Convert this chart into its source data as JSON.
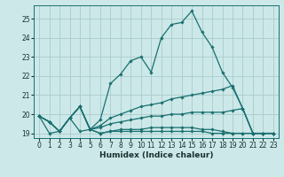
{
  "xlabel": "Humidex (Indice chaleur)",
  "bg_color": "#cce8e8",
  "grid_color": "#aacccc",
  "line_color": "#1a7070",
  "xlim": [
    -0.5,
    23.5
  ],
  "ylim": [
    18.75,
    25.7
  ],
  "yticks": [
    19,
    20,
    21,
    22,
    23,
    24,
    25
  ],
  "xticks": [
    0,
    1,
    2,
    3,
    4,
    5,
    6,
    7,
    8,
    9,
    10,
    11,
    12,
    13,
    14,
    15,
    16,
    17,
    18,
    19,
    20,
    21,
    22,
    23
  ],
  "lines": [
    {
      "x": [
        0,
        1,
        2,
        3,
        4,
        5,
        6,
        7,
        8,
        9,
        10,
        11,
        12,
        13,
        14,
        15,
        16,
        17,
        18,
        19,
        20,
        21,
        22,
        23
      ],
      "y": [
        19.9,
        19.6,
        19.1,
        19.8,
        20.4,
        19.2,
        19.7,
        21.6,
        22.1,
        22.8,
        23.0,
        22.2,
        24.0,
        24.7,
        24.8,
        25.4,
        24.3,
        23.5,
        22.2,
        21.4,
        20.3,
        19.0,
        19.0,
        19.0
      ]
    },
    {
      "x": [
        0,
        1,
        2,
        3,
        4,
        5,
        6,
        7,
        8,
        9,
        10,
        11,
        12,
        13,
        14,
        15,
        16,
        17,
        18,
        19,
        20,
        21,
        22,
        23
      ],
      "y": [
        19.9,
        19.6,
        19.1,
        19.8,
        20.4,
        19.2,
        19.4,
        19.8,
        20.0,
        20.2,
        20.4,
        20.5,
        20.6,
        20.8,
        20.9,
        21.0,
        21.1,
        21.2,
        21.3,
        21.5,
        20.3,
        19.0,
        19.0,
        19.0
      ]
    },
    {
      "x": [
        0,
        1,
        2,
        3,
        4,
        5,
        6,
        7,
        8,
        9,
        10,
        11,
        12,
        13,
        14,
        15,
        16,
        17,
        18,
        19,
        20,
        21,
        22,
        23
      ],
      "y": [
        19.9,
        19.6,
        19.1,
        19.8,
        20.4,
        19.2,
        19.3,
        19.5,
        19.6,
        19.7,
        19.8,
        19.9,
        19.9,
        20.0,
        20.0,
        20.1,
        20.1,
        20.1,
        20.1,
        20.2,
        20.3,
        19.0,
        19.0,
        19.0
      ]
    },
    {
      "x": [
        0,
        1,
        2,
        3,
        4,
        5,
        6,
        7,
        8,
        9,
        10,
        11,
        12,
        13,
        14,
        15,
        16,
        17,
        18,
        19,
        20,
        21,
        22,
        23
      ],
      "y": [
        19.9,
        19.0,
        19.1,
        19.8,
        19.1,
        19.2,
        19.0,
        19.1,
        19.1,
        19.1,
        19.1,
        19.1,
        19.1,
        19.1,
        19.1,
        19.1,
        19.1,
        19.0,
        19.0,
        19.0,
        19.0,
        19.0,
        19.0,
        19.0
      ]
    },
    {
      "x": [
        0,
        1,
        2,
        3,
        4,
        5,
        6,
        7,
        8,
        9,
        10,
        11,
        12,
        13,
        14,
        15,
        16,
        17,
        18,
        19,
        20,
        21,
        22,
        23
      ],
      "y": [
        19.9,
        19.6,
        19.1,
        19.8,
        20.4,
        19.2,
        19.0,
        19.1,
        19.2,
        19.2,
        19.2,
        19.3,
        19.3,
        19.3,
        19.3,
        19.3,
        19.2,
        19.2,
        19.1,
        19.0,
        19.0,
        19.0,
        19.0,
        19.0
      ]
    }
  ]
}
